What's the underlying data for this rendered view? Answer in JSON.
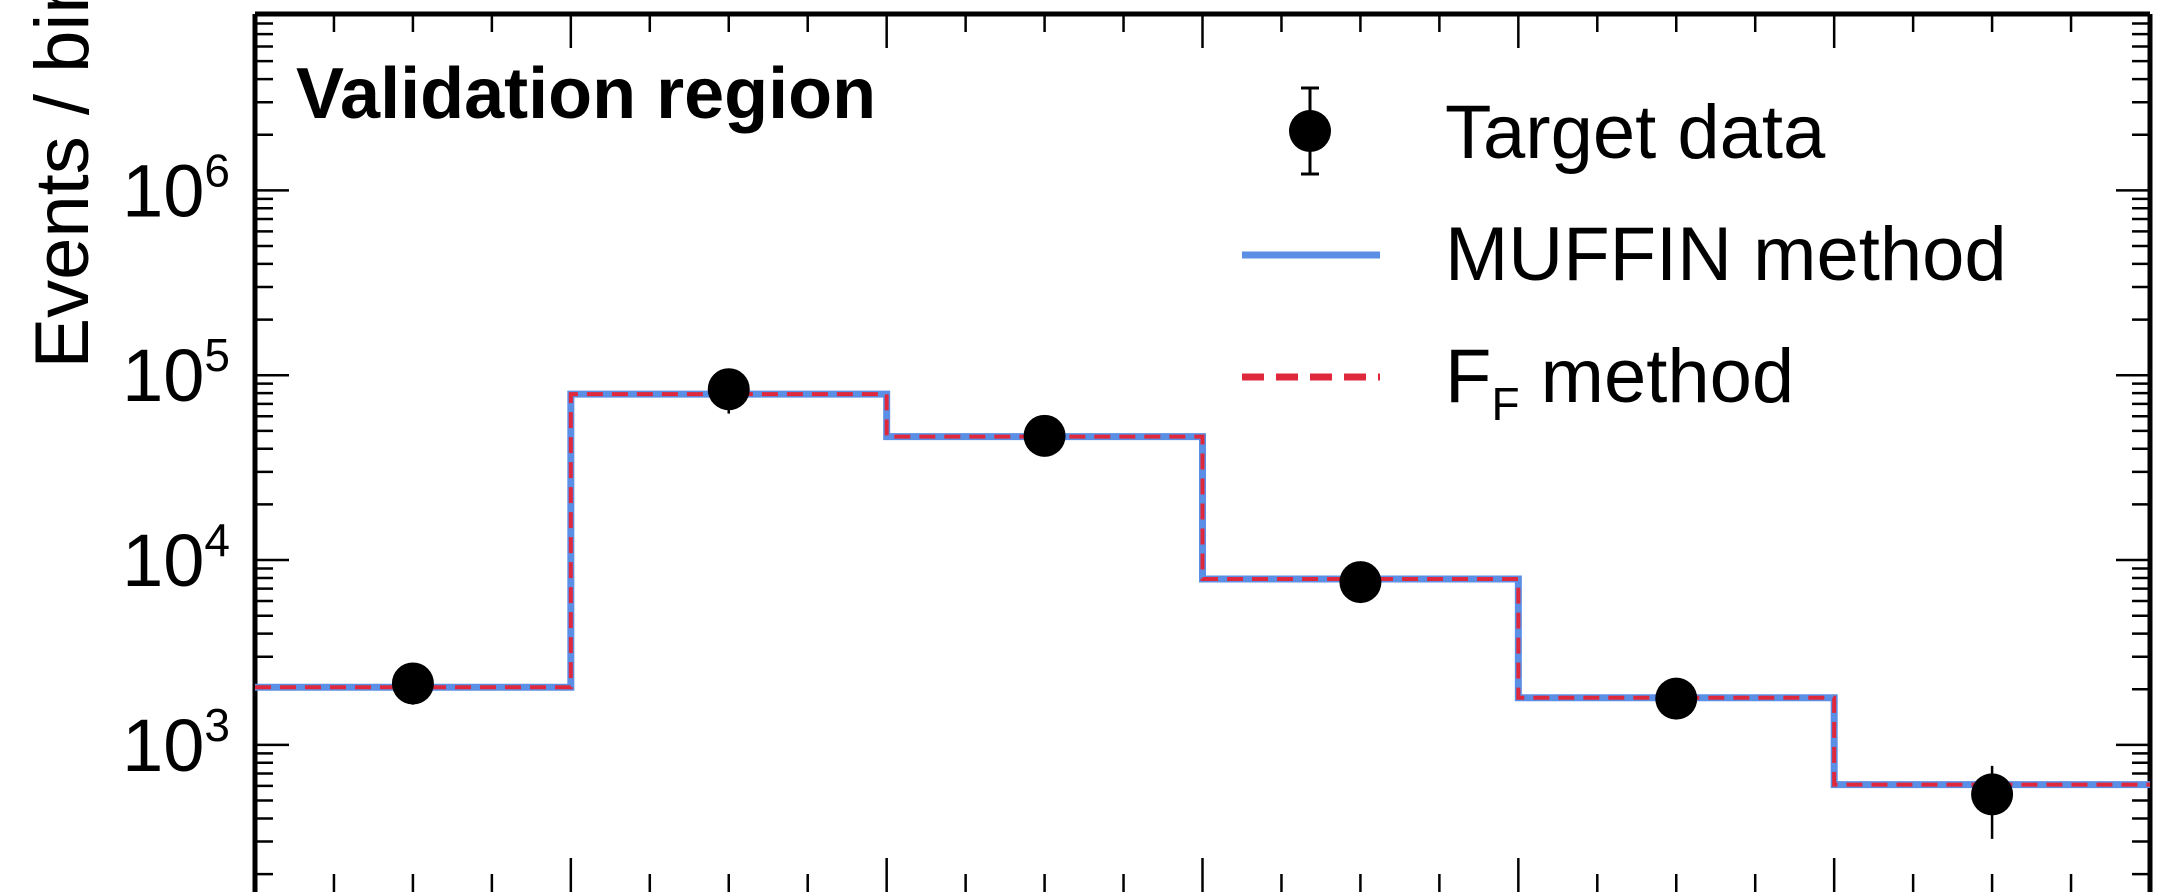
{
  "chart_data": {
    "type": "histogram",
    "ylabel": "Events / bin",
    "yscale": "log",
    "ylim": [
      160,
      9000000
    ],
    "yticks": [
      {
        "base": "10",
        "exp": "3",
        "value": 1000
      },
      {
        "base": "10",
        "exp": "4",
        "value": 10000
      },
      {
        "base": "10",
        "exp": "5",
        "value": 100000
      },
      {
        "base": "10",
        "exp": "6",
        "value": 1000000
      }
    ],
    "x_bin_edges": [
      0,
      1,
      2,
      3,
      4,
      5,
      6
    ],
    "annotation": "Validation region",
    "legend_position": "top-right",
    "series": [
      {
        "name": "Target data",
        "style": "points",
        "color": "#000000",
        "values": [
          2150,
          84000,
          47000,
          7600,
          1780,
          540
        ],
        "errors": [
          500,
          22000,
          6000,
          1500,
          250,
          230
        ]
      },
      {
        "name": "MUFFIN method",
        "style": "step-solid",
        "color": "#5b8fe6",
        "values": [
          2050,
          79000,
          46500,
          7900,
          1800,
          610
        ]
      },
      {
        "name_main": "F",
        "name_sub": "F",
        "name_rest": " method",
        "style": "step-dashed",
        "color": "#e0283c",
        "values": [
          2050,
          79000,
          46500,
          7900,
          1800,
          610
        ]
      }
    ]
  }
}
